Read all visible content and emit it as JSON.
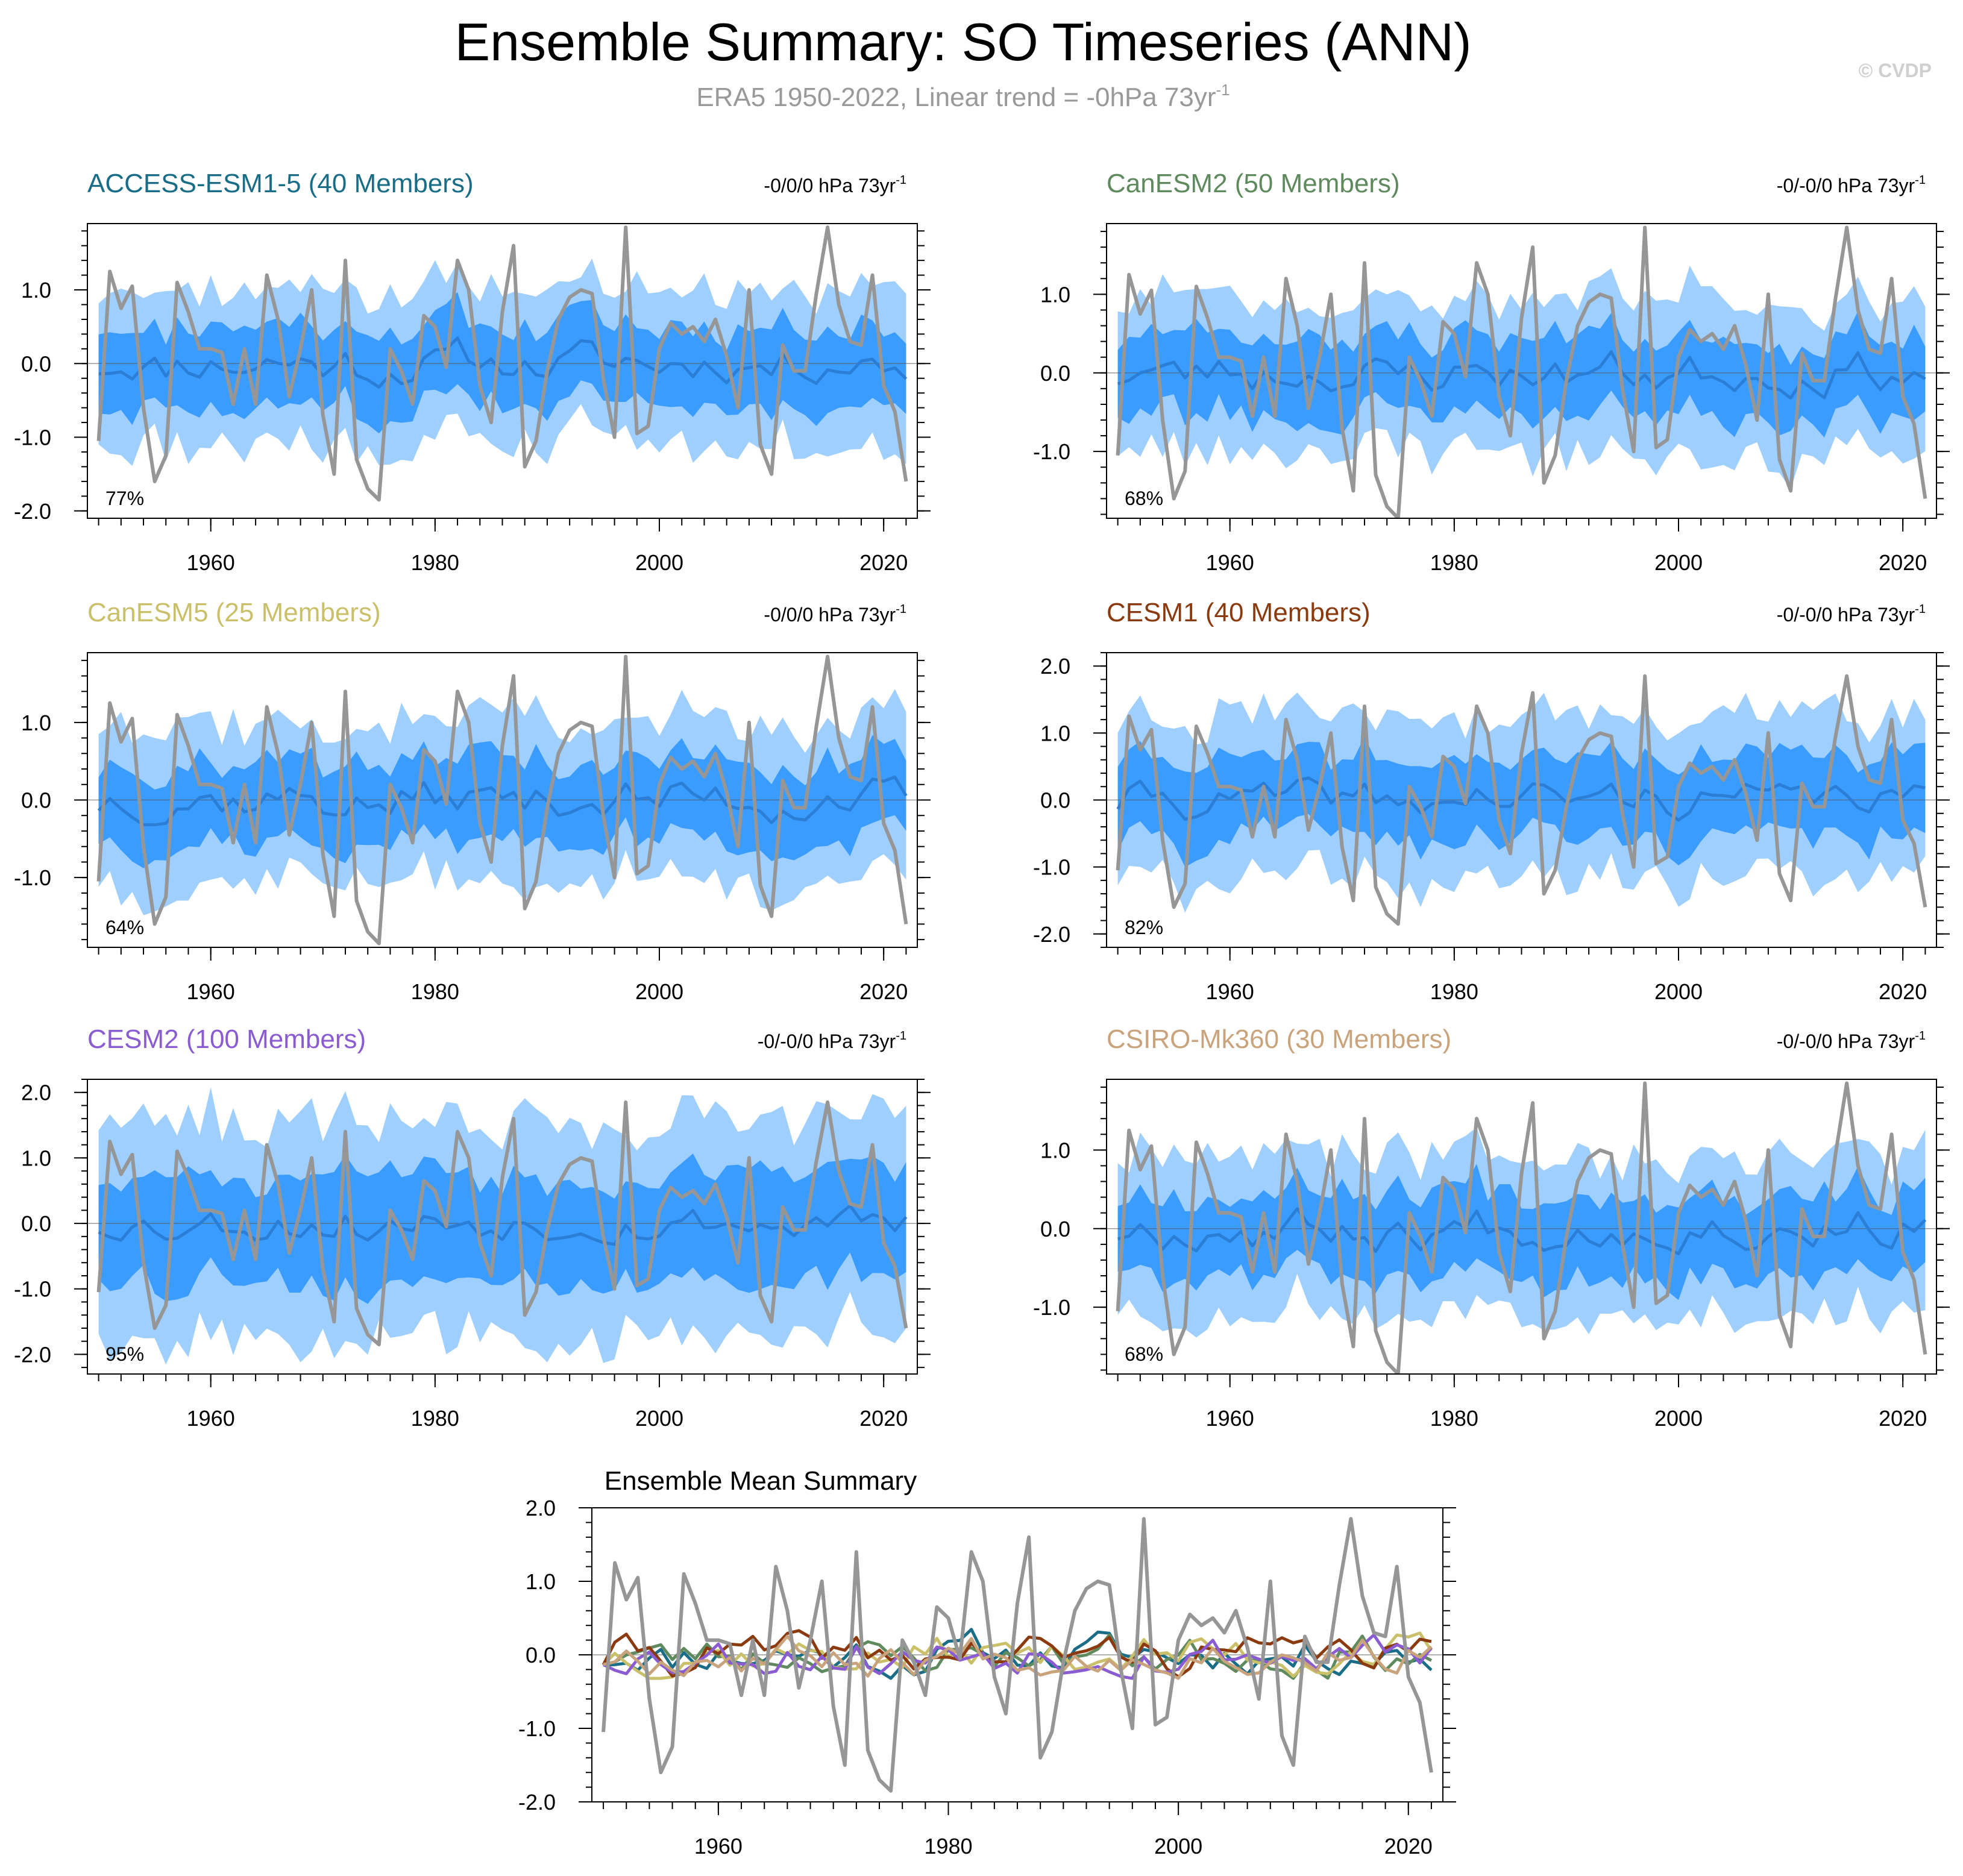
{
  "figure": {
    "title": "Ensemble Summary: SO Timeseries (ANN)",
    "subtitle": "ERA5 1950-2022, Linear trend = -0hPa 73yr",
    "subtitle_sup": "-1",
    "credit": "© CVDP"
  },
  "colors": {
    "outer_band": "#9fcfff",
    "inner_band": "#3a9cff",
    "ensemble_mean": "#2a7ed6",
    "observations": "#969696",
    "axis": "#000000"
  },
  "chart_data": [
    {
      "type": "line",
      "id": "access",
      "title": "ACCESS-ESM1-5 (40 Members)",
      "title_color": "#1a6d87",
      "trend": "-0/0/0 hPa 73yr",
      "trend_sup": "-1",
      "percent": "77%",
      "xlim": [
        1949,
        2023
      ],
      "ylim": [
        -2.1,
        1.9
      ],
      "x_ticks": [
        1960,
        1980,
        2000,
        2020
      ],
      "x_tick_labels": [
        "1960",
        "1980",
        "2000",
        "2020"
      ],
      "y_ticks": [
        1.0,
        0.0,
        -1.0,
        -2.0
      ],
      "y_tick_labels": [
        "1.0",
        "0.0",
        "-1.0",
        "-2.0"
      ],
      "spread": 1.0,
      "seed": 11,
      "series": [
        {
          "name": "Ensemble mean"
        },
        {
          "name": "ERA5"
        }
      ]
    },
    {
      "type": "line",
      "id": "canesm2",
      "title": "CanESM2 (50 Members)",
      "title_color": "#5e8a5e",
      "trend": "-0/-0/0 hPa 73yr",
      "trend_sup": "-1",
      "percent": "68%",
      "xlim": [
        1949,
        2023
      ],
      "ylim": [
        -1.85,
        1.9
      ],
      "x_ticks": [
        1960,
        1980,
        2000,
        2020
      ],
      "x_tick_labels": [
        "1960",
        "1980",
        "2000",
        "2020"
      ],
      "y_ticks": [
        1.0,
        0.0,
        -1.0
      ],
      "y_tick_labels": [
        "1.0",
        "0.0",
        "-1.0"
      ],
      "spread": 0.95,
      "seed": 23,
      "series": [
        {
          "name": "Ensemble mean"
        },
        {
          "name": "ERA5"
        }
      ]
    },
    {
      "type": "line",
      "id": "canesm5",
      "title": "CanESM5 (25 Members)",
      "title_color": "#cbc06a",
      "trend": "-0/0/0 hPa 73yr",
      "trend_sup": "-1",
      "percent": "64%",
      "xlim": [
        1949,
        2023
      ],
      "ylim": [
        -1.9,
        1.9
      ],
      "x_ticks": [
        1960,
        1980,
        2000,
        2020
      ],
      "x_tick_labels": [
        "1960",
        "1980",
        "2000",
        "2020"
      ],
      "y_ticks": [
        1.0,
        0.0,
        -1.0
      ],
      "y_tick_labels": [
        "1.0",
        "0.0",
        "-1.0"
      ],
      "spread": 1.0,
      "seed": 37,
      "series": [
        {
          "name": "Ensemble mean"
        },
        {
          "name": "ERA5"
        }
      ]
    },
    {
      "type": "line",
      "id": "cesm1",
      "title": "CESM1 (40 Members)",
      "title_color": "#8b3a0f",
      "trend": "-0/-0/0 hPa 73yr",
      "trend_sup": "-1",
      "percent": "82%",
      "xlim": [
        1949,
        2023
      ],
      "ylim": [
        -2.2,
        2.2
      ],
      "x_ticks": [
        1960,
        1980,
        2000,
        2020
      ],
      "x_tick_labels": [
        "1960",
        "1980",
        "2000",
        "2020"
      ],
      "y_ticks": [
        2.0,
        1.0,
        0.0,
        -1.0,
        -2.0
      ],
      "y_tick_labels": [
        "2.0",
        "1.0",
        "0.0",
        "-1.0",
        "-2.0"
      ],
      "spread": 1.15,
      "seed": 41,
      "series": [
        {
          "name": "Ensemble mean"
        },
        {
          "name": "ERA5"
        }
      ]
    },
    {
      "type": "line",
      "id": "cesm2",
      "title": "CESM2 (100 Members)",
      "title_color": "#8a5bd1",
      "trend": "-0/-0/0 hPa 73yr",
      "trend_sup": "-1",
      "percent": "95%",
      "xlim": [
        1949,
        2023
      ],
      "ylim": [
        -2.3,
        2.2
      ],
      "x_ticks": [
        1960,
        1980,
        2000,
        2020
      ],
      "x_tick_labels": [
        "1960",
        "1980",
        "2000",
        "2020"
      ],
      "y_ticks": [
        2.0,
        1.0,
        0.0,
        -1.0,
        -2.0
      ],
      "y_tick_labels": [
        "2.0",
        "1.0",
        "0.0",
        "-1.0",
        "-2.0"
      ],
      "spread": 1.55,
      "seed": 53,
      "series": [
        {
          "name": "Ensemble mean"
        },
        {
          "name": "ERA5"
        }
      ]
    },
    {
      "type": "line",
      "id": "csiro",
      "title": "CSIRO-Mk360 (30 Members)",
      "title_color": "#c9a37c",
      "trend": "-0/-0/0 hPa 73yr",
      "trend_sup": "-1",
      "percent": "68%",
      "xlim": [
        1949,
        2023
      ],
      "ylim": [
        -1.85,
        1.9
      ],
      "x_ticks": [
        1960,
        1980,
        2000,
        2020
      ],
      "x_tick_labels": [
        "1960",
        "1980",
        "2000",
        "2020"
      ],
      "y_ticks": [
        1.0,
        0.0,
        -1.0
      ],
      "y_tick_labels": [
        "1.0",
        "0.0",
        "-1.0"
      ],
      "spread": 0.95,
      "seed": 67,
      "series": [
        {
          "name": "Ensemble mean"
        },
        {
          "name": "ERA5"
        }
      ]
    },
    {
      "type": "line",
      "id": "summary",
      "title": "Ensemble Mean Summary",
      "xlim": [
        1949,
        2023
      ],
      "ylim": [
        -2.0,
        2.0
      ],
      "x_ticks": [
        1960,
        1980,
        2000,
        2020
      ],
      "x_tick_labels": [
        "1960",
        "1980",
        "2000",
        "2020"
      ],
      "y_ticks": [
        2.0,
        1.0,
        0.0,
        -1.0,
        -2.0
      ],
      "y_tick_labels": [
        "2.0",
        "1.0",
        "0.0",
        "-1.0",
        "-2.0"
      ],
      "series": [
        {
          "name": "ACCESS-ESM1-5",
          "color": "#1a6d87",
          "seed": 11
        },
        {
          "name": "CanESM2",
          "color": "#5e8a5e",
          "seed": 23
        },
        {
          "name": "CanESM5",
          "color": "#cbc06a",
          "seed": 37
        },
        {
          "name": "CESM1",
          "color": "#8b3a0f",
          "seed": 41
        },
        {
          "name": "CESM2",
          "color": "#8a5bd1",
          "seed": 53
        },
        {
          "name": "CSIRO-Mk360",
          "color": "#c9a37c",
          "seed": 67
        },
        {
          "name": "ERA5",
          "color": "#969696"
        }
      ]
    }
  ],
  "observed_era5": {
    "x": [
      1950,
      1951,
      1952,
      1953,
      1954,
      1955,
      1956,
      1957,
      1958,
      1959,
      1960,
      1961,
      1962,
      1963,
      1964,
      1965,
      1966,
      1967,
      1968,
      1969,
      1970,
      1971,
      1972,
      1973,
      1974,
      1975,
      1976,
      1977,
      1978,
      1979,
      1980,
      1981,
      1982,
      1983,
      1984,
      1985,
      1986,
      1987,
      1988,
      1989,
      1990,
      1991,
      1992,
      1993,
      1994,
      1995,
      1996,
      1997,
      1998,
      1999,
      2000,
      2001,
      2002,
      2003,
      2004,
      2005,
      2006,
      2007,
      2008,
      2009,
      2010,
      2011,
      2012,
      2013,
      2014,
      2015,
      2016,
      2017,
      2018,
      2019,
      2020,
      2021,
      2022
    ],
    "y": [
      -1.05,
      1.25,
      0.75,
      1.05,
      -0.6,
      -1.6,
      -1.25,
      1.1,
      0.7,
      0.2,
      0.2,
      0.15,
      -0.55,
      0.2,
      -0.55,
      1.2,
      0.6,
      -0.45,
      0.2,
      1.0,
      -0.7,
      -1.5,
      1.4,
      -1.3,
      -1.7,
      -1.85,
      0.2,
      -0.1,
      -0.55,
      0.65,
      0.5,
      -0.05,
      1.4,
      1.0,
      -0.3,
      -0.8,
      0.7,
      1.6,
      -1.4,
      -1.05,
      -0.1,
      0.6,
      0.9,
      1.0,
      0.95,
      -0.2,
      -1.0,
      1.85,
      -0.95,
      -0.85,
      0.2,
      0.55,
      0.4,
      0.5,
      0.3,
      0.6,
      0.1,
      -0.6,
      1.0,
      -1.1,
      -1.5,
      0.25,
      -0.1,
      -0.1,
      0.95,
      1.85,
      0.8,
      0.3,
      0.25,
      1.2,
      -0.3,
      -0.65,
      -1.6
    ]
  }
}
